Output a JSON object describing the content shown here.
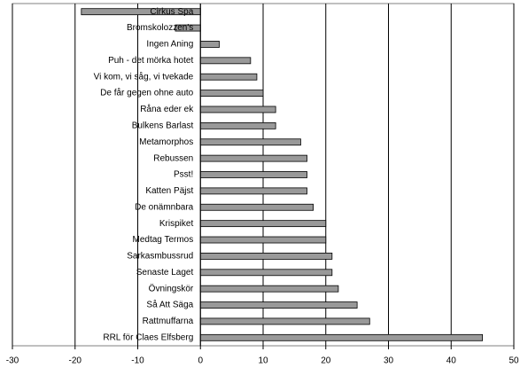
{
  "chart_data": {
    "type": "hbar",
    "categories": [
      "Cirkus Spa",
      "Bromskolozzen's",
      "Ingen Aning",
      "Puh - det mörka hotet",
      "Vi kom, vi såg, vi tvekade",
      "De får gegen ohne auto",
      "Råna eder ek",
      "Bulkens Barlast",
      "Metamorphos",
      "Rebussen",
      "Psst!",
      "Katten Päjst",
      "De onämnbara",
      "Krispiket",
      "Medtag Termos",
      "Sarkasmbussrud",
      "Senaste Laget",
      "Övningskör",
      "Så Att Säga",
      "Rattmuffarna",
      "RRL för Claes Elfsberg"
    ],
    "values": [
      -19,
      -4,
      3,
      8,
      9,
      10,
      12,
      12,
      16,
      17,
      17,
      17,
      18,
      20,
      20,
      21,
      21,
      22,
      25,
      27,
      45
    ],
    "color": "#999999",
    "xlim": [
      -30,
      50
    ],
    "xticks": [
      -30,
      -20,
      -10,
      0,
      10,
      20,
      30,
      40,
      50
    ],
    "grid": true
  }
}
